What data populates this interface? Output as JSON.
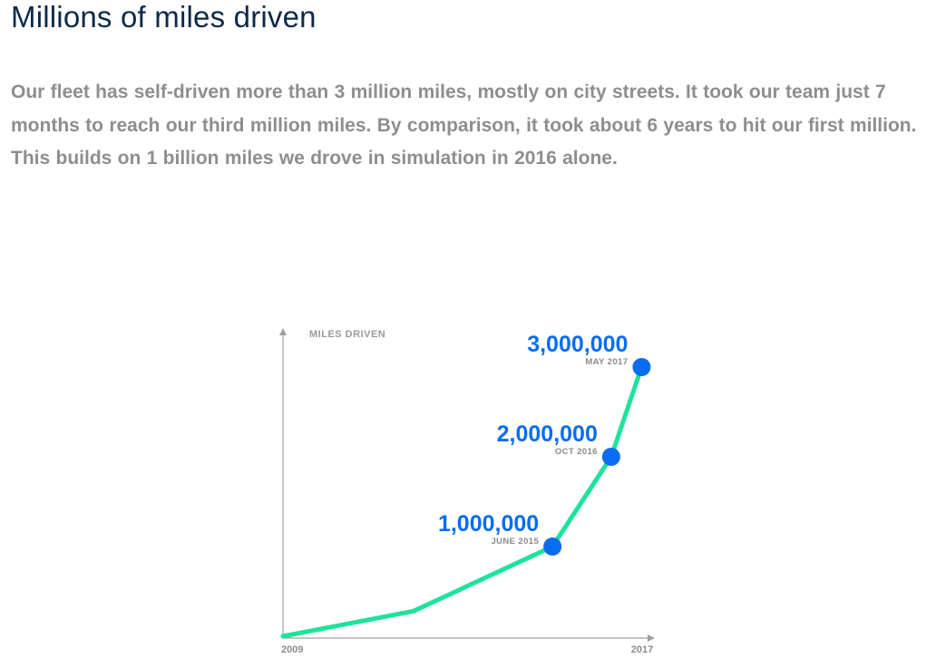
{
  "header": {
    "title": "Millions of miles driven"
  },
  "intro": {
    "text": "Our fleet has self-driven more than 3 million miles, mostly on city streets. It took our team just 7 months to reach our third million miles. By comparison, it took about 6 years to hit our first million. This builds on 1 billion miles we drove in simulation in 2016 alone."
  },
  "chart_data": {
    "type": "line",
    "title": "",
    "ylabel": "MILES DRIVEN",
    "xlabel": "",
    "x_ticks": [
      "2009",
      "2017"
    ],
    "xlim": [
      2009.0,
      2017.45
    ],
    "ylim": [
      0,
      3000000
    ],
    "grid": false,
    "colors": {
      "line": "#1de39b",
      "marker": "#0a6cf0",
      "label": "#0a6cf0"
    },
    "series": [
      {
        "points": [
          {
            "x": 2009.0,
            "y": 0
          },
          {
            "x": 2012.0,
            "y": 280000
          },
          {
            "x": 2015.2,
            "y": 1000000,
            "value_label": "1,000,000",
            "date_label": "JUNE 2015",
            "marker": true
          },
          {
            "x": 2016.55,
            "y": 2000000,
            "value_label": "2,000,000",
            "date_label": "OCT 2016",
            "marker": true
          },
          {
            "x": 2017.25,
            "y": 3000000,
            "value_label": "3,000,000",
            "date_label": "MAY 2017",
            "marker": true
          }
        ]
      }
    ]
  }
}
